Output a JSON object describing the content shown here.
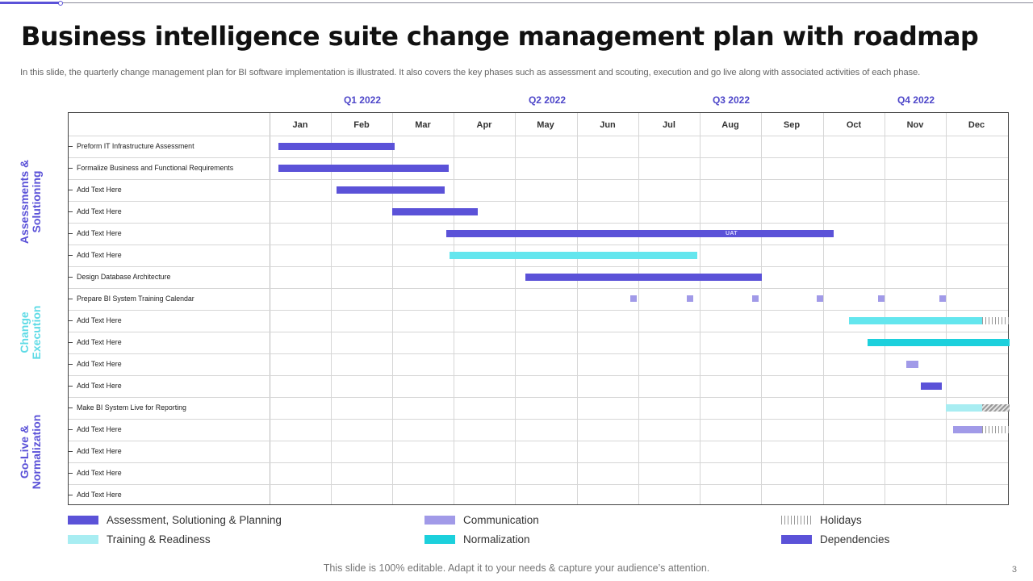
{
  "header": {
    "title": "Business intelligence suite change management plan with roadmap",
    "subtitle": "In this slide, the quarterly change management plan for BI  software implementation is illustrated. It also covers the key  phases such as assessment and scouting, execution and go live  along with associated activities of each phase."
  },
  "quarters": [
    "Q1 2022",
    "Q2 2022",
    "Q3 2022",
    "Q4 2022"
  ],
  "months": [
    "Jan",
    "Feb",
    "Mar",
    "Apr",
    "May",
    "Jun",
    "Jul",
    "Aug",
    "Sep",
    "Oct",
    "Nov",
    "Dec"
  ],
  "phases": [
    "Assessments & Solutioning",
    "Change Execution",
    "Go-Live & Normalization"
  ],
  "colors": {
    "assessment": "#5b52d8",
    "training": "#64e6ee",
    "normalization": "#1cd0dc",
    "communication": "#a19ae8",
    "phase_change": "#5fdbe6"
  },
  "tasks": [
    "Preform IT Infrastructure Assessment",
    "Formalize Business and Functional Requirements",
    "Add Text Here",
    "Add Text Here",
    "Add Text Here",
    "Add Text Here",
    "Design Database Architecture",
    "Prepare BI System Training Calendar",
    "Add Text Here",
    "Add Text Here",
    "Add Text Here",
    "Add Text Here",
    "Make BI System Live for Reporting",
    "Add Text Here",
    "Add Text Here",
    "Add Text Here",
    "Add Text Here"
  ],
  "bars": {
    "uat_label": "UAT"
  },
  "legend": {
    "assessment": "Assessment, Solutioning & Planning",
    "training": "Training  & Readiness",
    "communication": "Communication",
    "normalization": "Normalization",
    "holidays": "Holidays",
    "dependencies": "Dependencies"
  },
  "footer": {
    "note": "This slide is 100% editable. Adapt it to your needs & capture your audience’s attention.",
    "page_number": "3"
  }
}
